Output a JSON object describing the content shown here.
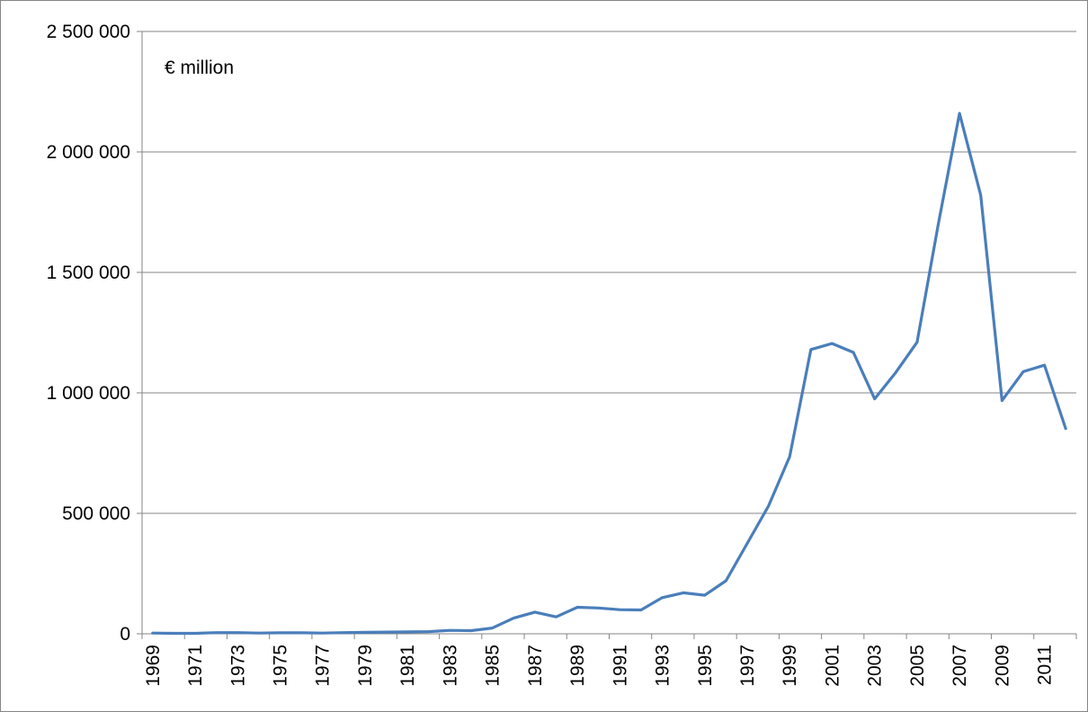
{
  "chart_data": {
    "type": "line",
    "title": "",
    "unit_label": "€ million",
    "xlabel": "",
    "ylabel": "",
    "ylim": [
      0,
      2500000
    ],
    "yticks": [
      0,
      500000,
      1000000,
      1500000,
      2000000,
      2500000
    ],
    "ytick_labels": [
      "0",
      "500 000",
      "1 000 000",
      "1 500 000",
      "2 000 000",
      "2 500 000"
    ],
    "x": [
      1969,
      1970,
      1971,
      1972,
      1973,
      1974,
      1975,
      1976,
      1977,
      1978,
      1979,
      1980,
      1981,
      1982,
      1983,
      1984,
      1985,
      1986,
      1987,
      1988,
      1989,
      1990,
      1991,
      1992,
      1993,
      1994,
      1995,
      1996,
      1997,
      1998,
      1999,
      2000,
      2001,
      2002,
      2003,
      2004,
      2005,
      2006,
      2007,
      2008,
      2009,
      2010,
      2011,
      2012
    ],
    "xtick_labels": [
      "1969",
      "1971",
      "1973",
      "1975",
      "1977",
      "1979",
      "1981",
      "1983",
      "1985",
      "1987",
      "1989",
      "1991",
      "1993",
      "1995",
      "1997",
      "1999",
      "2001",
      "2003",
      "2005",
      "2007",
      "2009",
      "2011"
    ],
    "grid": true,
    "legend": "none",
    "series": [
      {
        "color": "#4a7ebb",
        "values": [
          3000,
          2000,
          2000,
          5000,
          5000,
          3000,
          4000,
          4000,
          3000,
          5000,
          6000,
          7000,
          8000,
          9000,
          14000,
          13000,
          24000,
          65000,
          90000,
          70000,
          110000,
          107000,
          100000,
          99000,
          150000,
          170000,
          160000,
          220000,
          375000,
          530000,
          735000,
          1180000,
          1205000,
          1168000,
          975000,
          1085000,
          1210000,
          1700000,
          2160000,
          1820000,
          968000,
          1088000,
          1115000,
          852000
        ]
      }
    ]
  }
}
